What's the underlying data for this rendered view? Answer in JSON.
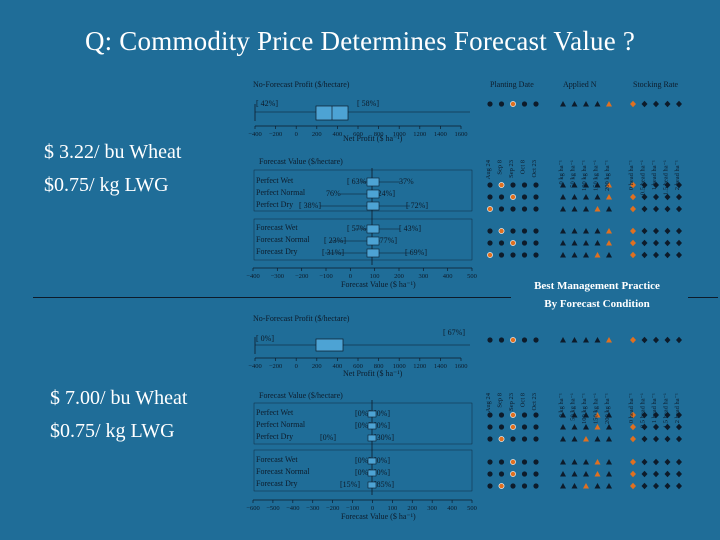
{
  "slide": {
    "title": "Q: Commodity Price Determines Forecast Value ?",
    "section_label_line1": "Best Management Practice",
    "section_label_line2": "By Forecast Condition"
  },
  "top": {
    "price_wheat": "$ 3.22/ bu Wheat",
    "price_lwg": "$0.75/ kg LWG",
    "nf_title": "No-Forecast Profit ($/hectare)",
    "nf_pct_left": "[ 42%]",
    "nf_pct_right": "[ 58%]",
    "nf_ticks": [
      "−400",
      "−200",
      "0",
      "200",
      "400",
      "600",
      "800",
      "1000",
      "1200",
      "1400",
      "1600"
    ],
    "nf_xlabel": "Net Profit ($ ha⁻¹)",
    "fv_title": "Forecast Value ($/hectare)",
    "perfect_labels": [
      "Perfect Wet",
      "Perfect Normal",
      "Perfect Dry"
    ],
    "forecast_labels": [
      "Forecast Wet",
      "Forecast Normal",
      "Forecast Dry"
    ],
    "perfect_pcts": [
      "[ 63%]",
      "37%",
      "[ 24%]",
      "76%",
      "[ 38%]",
      "[ 72%]"
    ],
    "forecast_pcts": [
      "[ 57%]",
      "[ 43%]",
      "[ 23%]",
      "[ 77%]",
      "[ 31%]",
      "[ 69%]"
    ],
    "fv_ticks": [
      "−400",
      "−300",
      "−200",
      "−100",
      "0",
      "100",
      "200",
      "300",
      "400",
      "500"
    ],
    "fv_xlabel": "Forecast Value ($ ha⁻¹)"
  },
  "bottom": {
    "price_wheat": "$ 7.00/ bu Wheat",
    "price_lwg": "$0.75/ kg LWG",
    "nf_title": "No-Forecast Profit ($/hectare)",
    "nf_pct_left": "[ 0%]",
    "nf_pct_right": "[ 67%]",
    "nf_ticks": [
      "−400",
      "−200",
      "0",
      "200",
      "400",
      "600",
      "800",
      "1000",
      "1200",
      "1400",
      "1600"
    ],
    "nf_xlabel": "Net Profit ($ ha⁻¹)",
    "fv_title": "Forecast Value ($/hectare)",
    "perfect_labels": [
      "Perfect Wet",
      "Perfect Normal",
      "Perfect Dry"
    ],
    "forecast_labels": [
      "Forecast Wet",
      "Forecast Normal",
      "Forecast Dry"
    ],
    "perfect_pcts": [
      "[0%]",
      "[0%]",
      "[0%]",
      "[0%]",
      "[0%]",
      "[30%]"
    ],
    "forecast_pcts": [
      "[0%]",
      "[0%]",
      "[0%]",
      "[0%]",
      "[15%]",
      "[85%]"
    ],
    "fv_ticks": [
      "−600",
      "−500",
      "−400",
      "−300",
      "−200",
      "−100",
      "0",
      "100",
      "200",
      "300",
      "400",
      "500"
    ],
    "fv_xlabel": "Forecast Value ($ ha⁻¹)"
  },
  "columns": {
    "planting_date": "Planting Date",
    "applied_n": "Applied N",
    "stocking_rate": "Stocking Rate",
    "planting_dates": [
      "Aug 24",
      "Sep 8",
      "Sep 23",
      "Oct 8",
      "Oct 23"
    ],
    "n_rates": [
      "0 kg ha⁻¹",
      "50 kg ha⁻¹",
      "100 kg ha⁻¹",
      "150 kg ha⁻¹",
      "200 kg ha⁻¹"
    ],
    "stocking_rates": [
      "0 head ha⁻¹",
      "0.5 head ha⁻¹",
      "1 head ha⁻¹",
      "1.5 head ha⁻¹",
      "2 head ha⁻¹"
    ]
  },
  "colors": {
    "background": "#1f6d98",
    "panel_box": "#4da3d4",
    "marker_dark": "#0d1b2a",
    "marker_highlight": "#e07020"
  }
}
